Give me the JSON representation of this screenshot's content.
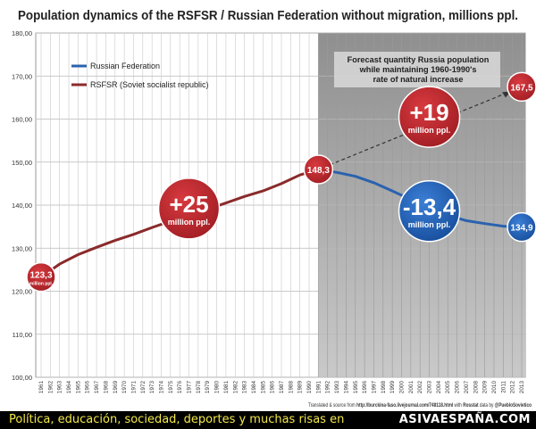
{
  "chart_data": {
    "type": "line",
    "title": "Population dynamics of the RSFSR / Russian Federation without migration, millions ppl.",
    "ylim": [
      100,
      180
    ],
    "yticks": [
      "100,00",
      "110,00",
      "120,00",
      "130,00",
      "140,00",
      "150,00",
      "160,00",
      "170,00",
      "180,00"
    ],
    "xrange": [
      1961,
      2013
    ],
    "xticks": [
      "1961",
      "1962",
      "1963",
      "1964",
      "1965",
      "1966",
      "1967",
      "1968",
      "1969",
      "1970",
      "1971",
      "1972",
      "1973",
      "1974",
      "1975",
      "1976",
      "1977",
      "1978",
      "1979",
      "1980",
      "1981",
      "1982",
      "1983",
      "1984",
      "1985",
      "1986",
      "1987",
      "1988",
      "1989",
      "1990",
      "1991",
      "1992",
      "1993",
      "1994",
      "1995",
      "1996",
      "1997",
      "1998",
      "1999",
      "2000",
      "2001",
      "2002",
      "2003",
      "2004",
      "2005",
      "2006",
      "2007",
      "2008",
      "2009",
      "2010",
      "2011",
      "2012",
      "2013"
    ],
    "grid": true,
    "legend_position": "top-left",
    "series": [
      {
        "name": "RSFSR (Soviet socialist republic)",
        "color": "#8b2a2a",
        "points": [
          [
            1961,
            123.3
          ],
          [
            1963,
            126.3
          ],
          [
            1965,
            128.5
          ],
          [
            1967,
            130.2
          ],
          [
            1969,
            131.8
          ],
          [
            1971,
            133.2
          ],
          [
            1973,
            134.8
          ],
          [
            1975,
            136.3
          ],
          [
            1977,
            137.7
          ],
          [
            1979,
            139.0
          ],
          [
            1981,
            140.5
          ],
          [
            1983,
            142.0
          ],
          [
            1985,
            143.3
          ],
          [
            1987,
            145.0
          ],
          [
            1989,
            147.0
          ],
          [
            1991,
            148.3
          ]
        ]
      },
      {
        "name": "Russian Federation",
        "color": "#2a62ae",
        "points": [
          [
            1991,
            148.3
          ],
          [
            1993,
            147.6
          ],
          [
            1995,
            146.7
          ],
          [
            1997,
            145.2
          ],
          [
            1999,
            143.3
          ],
          [
            2001,
            141.3
          ],
          [
            2003,
            139.4
          ],
          [
            2005,
            137.7
          ],
          [
            2007,
            136.4
          ],
          [
            2009,
            135.7
          ],
          [
            2011,
            135.1
          ],
          [
            2013,
            134.9
          ]
        ]
      },
      {
        "role": "forecast",
        "color": "#333333",
        "points": [
          [
            1991,
            148.3
          ],
          [
            2013,
            167.5
          ]
        ]
      }
    ],
    "forecast_region": [
      1991,
      2013
    ],
    "forecast_note": [
      "Forecast quantity Russia population",
      "while maintaining 1960-1990's",
      "rate of natural increase"
    ],
    "bubbles": [
      {
        "year": 1961,
        "value": 123.3,
        "label": "123,3",
        "sub": "million ppl.",
        "color": "#b8262c",
        "kind": "point"
      },
      {
        "year": 1991,
        "value": 148.3,
        "label": "148,3",
        "sub": "",
        "color": "#b8262c",
        "kind": "point"
      },
      {
        "year": 2013,
        "value": 167.5,
        "label": "167,5",
        "sub": "",
        "color": "#b8262c",
        "kind": "point"
      },
      {
        "year": 2013,
        "value": 134.9,
        "label": "134,9",
        "sub": "",
        "color": "#1f5fb5",
        "kind": "point"
      },
      {
        "year": 1977,
        "value": 139.2,
        "label": "+25",
        "sub": "million ppl.",
        "color": "#b8262c",
        "kind": "big"
      },
      {
        "year": 2003,
        "value": 160.5,
        "label": "+19",
        "sub": "million ppl.",
        "color": "#b8262c",
        "kind": "big"
      },
      {
        "year": 2003,
        "value": 138.6,
        "label": "-13,4",
        "sub": "million ppl.",
        "color": "#1f5fb5",
        "kind": "big"
      }
    ],
    "source_note": {
      "prefix": "Translated & source from ",
      "link": "http://burckina-faso.livejournal.com/748118.html",
      "middle": " with ",
      "rosstat": "Rosstat",
      "suffix": " data by ",
      "author": "@PuebloSovietico"
    }
  },
  "footer": {
    "slogan": "Política, educación, sociedad, deportes y muchas risas en",
    "brand": "ASIVAESPAÑA.COM"
  }
}
